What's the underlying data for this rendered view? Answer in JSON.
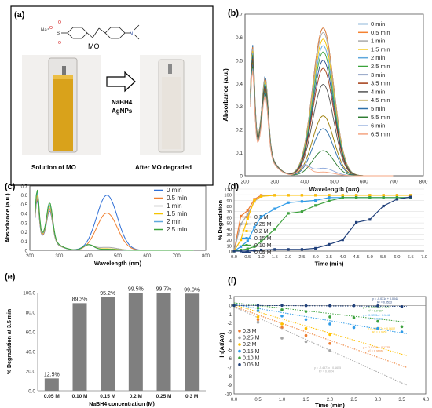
{
  "panels": {
    "a": {
      "label": "(a)",
      "mo_label": "MO",
      "na_label": "Na⁺",
      "reagent_1": "NaBH4",
      "reagent_2": "AgNPs",
      "left_caption": "Solution of MO",
      "right_caption": "After MO degraded",
      "colors": {
        "solution": "#d9a21b",
        "degraded": "#e8e3dc"
      }
    }
  },
  "chart_data": [
    {
      "panel": "(b)",
      "type": "line",
      "xlabel": "Wavelength (nm)",
      "ylabel": "Absorbance (a.u.)",
      "xlim": [
        200,
        800
      ],
      "ylim": [
        0,
        0.7
      ],
      "xticks": [
        200,
        300,
        400,
        500,
        600,
        700,
        800
      ],
      "yticks": [
        0,
        0.1,
        0.2,
        0.3,
        0.4,
        0.5,
        0.6,
        0.7
      ],
      "ytick_labels": [
        "0",
        "0.1",
        "0.2",
        "0.3",
        "0.4",
        "0.5",
        "0.6",
        "0.7"
      ],
      "legend_position": "top-right",
      "series": [
        {
          "name": "0 min",
          "color": "#1f6fb5",
          "peak": 0.64
        },
        {
          "name": "0.5 min",
          "color": "#f58231",
          "peak": 0.65
        },
        {
          "name": "1 min",
          "color": "#a9a9a9",
          "peak": 0.64
        },
        {
          "name": "1.5 min",
          "color": "#f5c400",
          "peak": 0.62
        },
        {
          "name": "2 min",
          "color": "#5fa8dc",
          "peak": 0.6
        },
        {
          "name": "2.5 min",
          "color": "#3aa33a",
          "peak": 0.58
        },
        {
          "name": "3 min",
          "color": "#2a4b8d",
          "peak": 0.55
        },
        {
          "name": "3.5 min",
          "color": "#a33b12",
          "peak": 0.52
        },
        {
          "name": "4 min",
          "color": "#555555",
          "peak": 0.45
        },
        {
          "name": "4.5 min",
          "color": "#9a7a00",
          "peak": 0.3
        },
        {
          "name": "5 min",
          "color": "#2d6fa8",
          "peak": 0.24
        },
        {
          "name": "5.5 min",
          "color": "#2e7d32",
          "peak": 0.13
        },
        {
          "name": "6 min",
          "color": "#8faadc",
          "peak": 0.04
        },
        {
          "name": "6.5 min",
          "color": "#f4a582",
          "peak": 0.02
        }
      ]
    },
    {
      "panel": "(c)",
      "type": "line",
      "xlabel": "Wavelength (nm)",
      "ylabel": "Absorbance (a.u.)",
      "xlim": [
        200,
        800
      ],
      "ylim": [
        0,
        0.7
      ],
      "xticks": [
        200,
        300,
        400,
        500,
        600,
        700,
        800
      ],
      "yticks": [
        0,
        0.1,
        0.2,
        0.3,
        0.4,
        0.5,
        0.6,
        0.7
      ],
      "ytick_labels": [
        "0",
        "0.1",
        "0.2",
        "0.3",
        "0.4",
        "0.5",
        "0.6",
        "0.7"
      ],
      "legend_position": "top-right",
      "series": [
        {
          "name": "0 min",
          "color": "#2f6fd6",
          "peak": 0.6
        },
        {
          "name": "0.5 min",
          "color": "#f08030",
          "peak": 0.39
        },
        {
          "name": "1 min",
          "color": "#a9a9a9",
          "peak": 0.03
        },
        {
          "name": "1.5 min",
          "color": "#f5c400",
          "peak": 0.015
        },
        {
          "name": "2 min",
          "color": "#5fa8dc",
          "peak": 0.01
        },
        {
          "name": "2.5 min",
          "color": "#3aa33a",
          "peak": 0.01
        }
      ]
    },
    {
      "panel": "(d)",
      "type": "line",
      "xlabel": "Time (min)",
      "ylabel": "% Degradation",
      "xlim": [
        0,
        7
      ],
      "ylim": [
        0,
        110
      ],
      "xticks": [
        0,
        0.5,
        1,
        1.5,
        2,
        2.5,
        3,
        3.5,
        4,
        4.5,
        5,
        5.5,
        6,
        6.5,
        7
      ],
      "xtick_labels": [
        "0.0",
        "0.5",
        "1.0",
        "1.5",
        "2.0",
        "2.5",
        "3.0",
        "3.5",
        "4.0",
        "4.5",
        "5.0",
        "5.5",
        "6.0",
        "6.5",
        "7.0"
      ],
      "yticks": [
        0,
        10,
        20,
        30,
        40,
        50,
        60,
        70,
        80,
        90,
        100,
        110
      ],
      "legend_position": "bottom-left",
      "x": [
        0,
        0.25,
        0.5,
        0.75,
        1,
        1.5,
        2,
        2.5,
        3,
        3.5,
        4,
        4.5,
        5,
        5.5,
        6,
        6.5
      ],
      "series": [
        {
          "name": "0.3 M",
          "color": "#ed7d31",
          "values": [
            0,
            62,
            72,
            92,
            99,
            99,
            99,
            99,
            99,
            99,
            99,
            99,
            99,
            99,
            99,
            99
          ]
        },
        {
          "name": "0.25 M",
          "color": "#a5a5a5",
          "values": [
            0,
            48,
            65,
            88,
            98,
            99,
            99,
            99,
            99,
            99,
            99,
            99,
            99,
            99,
            99,
            99
          ]
        },
        {
          "name": "0.2 M",
          "color": "#ffc000",
          "values": [
            0,
            20,
            58,
            90,
            97,
            99,
            99,
            99,
            99,
            99,
            99,
            99,
            99,
            99,
            99,
            99
          ]
        },
        {
          "name": "0.15 M",
          "color": "#2e9be8",
          "values": [
            0,
            8,
            18,
            42,
            61,
            75,
            86,
            88,
            90,
            95,
            95,
            95,
            95,
            95,
            95,
            95
          ]
        },
        {
          "name": "0.10 M",
          "color": "#3da13d",
          "values": [
            0,
            2,
            4,
            8,
            17,
            39,
            67,
            70,
            81,
            89,
            95,
            95,
            95,
            95,
            95,
            95
          ]
        },
        {
          "name": "0.05 M",
          "color": "#1f3f7a",
          "values": [
            0,
            0,
            0,
            1,
            2,
            3,
            3,
            3,
            5,
            12,
            20,
            51,
            56,
            80,
            92,
            96
          ]
        }
      ]
    },
    {
      "panel": "(e)",
      "type": "bar",
      "xlabel": "NaBH4 concentration (M)",
      "ylabel": "% Degradation at 3.5 min",
      "ylim": [
        0,
        100
      ],
      "yticks": [
        0,
        20,
        40,
        60,
        80,
        100
      ],
      "ytick_labels": [
        "0.0",
        "20.0",
        "40.0",
        "60.0",
        "80.0",
        "100.0"
      ],
      "categories": [
        "0.05 M",
        "0.10 M",
        "0.15 M",
        "0.2 M",
        "0.25 M",
        "0.3 M"
      ],
      "values": [
        12.5,
        89.3,
        95.2,
        99.5,
        99.7,
        99.0
      ],
      "data_labels": [
        "12.5%",
        "89.3%",
        "95.2%",
        "99.5%",
        "99.7%",
        "99.0%"
      ],
      "color": "#7f7f7f"
    },
    {
      "panel": "(f)",
      "type": "scatter",
      "xlabel": "Time (min)",
      "ylabel": "ln(At/A0)",
      "xlim": [
        0,
        4
      ],
      "ylim": [
        -10,
        1
      ],
      "xticks": [
        0,
        0.5,
        1,
        1.5,
        2,
        2.5,
        3,
        3.5,
        4
      ],
      "xtick_labels": [
        "0.0",
        "0.5",
        "1.0",
        "1.5",
        "2.0",
        "2.5",
        "3.0",
        "3.5",
        "4.0"
      ],
      "yticks": [
        1,
        0,
        -1,
        -2,
        -3,
        -4,
        -5,
        -6,
        -7,
        -8,
        -9,
        -10
      ],
      "legend_position": "center-left",
      "x": [
        0,
        0.5,
        1,
        1.5,
        2,
        2.5,
        3,
        3.5
      ],
      "series": [
        {
          "name": "0.3 M",
          "color": "#ed7d31",
          "values": [
            0,
            -1.6,
            -2.5,
            -3.4,
            -4.3,
            null,
            null,
            null
          ],
          "slope": -1.9125,
          "intercept": -0.1225,
          "equation": "y = -1.9125x - 0.1225",
          "r2": "R² = 0.9606"
        },
        {
          "name": "0.25 M",
          "color": "#a5a5a5",
          "values": [
            0,
            -1.9,
            -3.7,
            -4.1,
            -5.1,
            null,
            null,
            null
          ],
          "slope": -2.4571,
          "intercept": -0.1655,
          "equation": "y = -2.4571x - 0.1655",
          "r2": "R² = 0.9024"
        },
        {
          "name": "0.2 M",
          "color": "#ffc000",
          "values": [
            0,
            -1.3,
            -2.1,
            -2.6,
            -3.3,
            null,
            null,
            null
          ],
          "slope": -1.5927,
          "intercept": 0.0602,
          "equation": "y = -1.5927x + 0.0602",
          "r2": "R² = 0.9951"
        },
        {
          "name": "0.15 M",
          "color": "#2e9be8",
          "values": [
            0,
            -0.6,
            -1.2,
            -1.6,
            -2.1,
            -2.5,
            -2.6,
            -3.0
          ],
          "slope": -0.9233,
          "intercept": 0.1148,
          "equation": "y = -0.9233x + 0.1148",
          "r2": "R² = 0.9762"
        },
        {
          "name": "0.10 M",
          "color": "#3da13d",
          "values": [
            0,
            -0.3,
            -0.5,
            -0.7,
            -1.3,
            -1.4,
            -1.8,
            -2.4
          ],
          "slope": -0.6068,
          "intercept": 0.2923,
          "equation": "y = -0.6068x + 0.2923",
          "r2": "R² = 0.9487"
        },
        {
          "name": "0.05 M",
          "color": "#1f3f7a",
          "values": [
            0,
            0,
            0,
            -0.03,
            -0.03,
            -0.03,
            -0.05,
            -0.13
          ],
          "slope": -0.031,
          "intercept": 0.0041,
          "equation": "y = -0.031x + 0.0041",
          "r2": "R² = 0.8533"
        }
      ]
    }
  ]
}
